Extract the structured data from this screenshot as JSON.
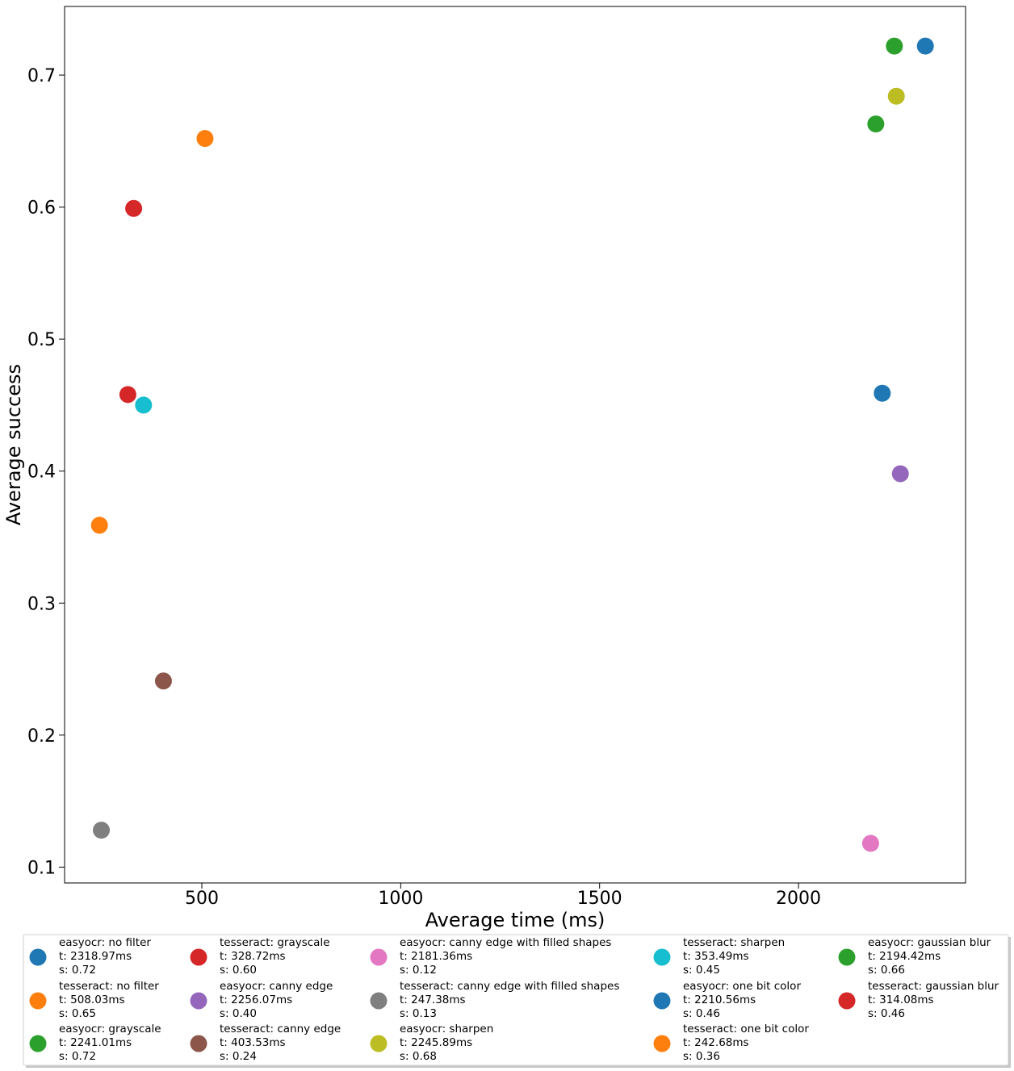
{
  "chart_data": {
    "type": "scatter",
    "title": "",
    "xlabel": "Average time (ms)",
    "ylabel": "Average success",
    "xlim": [
      155,
      2420
    ],
    "ylim": [
      0.088,
      0.752
    ],
    "x_ticks": [
      500,
      1000,
      1500,
      2000
    ],
    "x_tick_labels": [
      "500",
      "1000",
      "1500",
      "2000"
    ],
    "y_ticks": [
      0.1,
      0.2,
      0.3,
      0.4,
      0.5,
      0.6,
      0.7
    ],
    "y_tick_labels": [
      "0.1",
      "0.2",
      "0.3",
      "0.4",
      "0.5",
      "0.6",
      "0.7"
    ],
    "grid": false,
    "legend_position": "below plot",
    "series": [
      {
        "name": "easyocr: no filter",
        "color": "#1f77b4",
        "x": 2318.97,
        "y": 0.722,
        "legend": [
          "easyocr: no filter",
          "t: 2318.97ms",
          "s: 0.72"
        ]
      },
      {
        "name": "tesseract: no filter",
        "color": "#ff7f0e",
        "x": 508.03,
        "y": 0.652,
        "legend": [
          "tesseract: no filter",
          "t: 508.03ms",
          "s: 0.65"
        ]
      },
      {
        "name": "easyocr: grayscale",
        "color": "#2ca02c",
        "x": 2241.01,
        "y": 0.722,
        "legend": [
          "easyocr: grayscale",
          "t: 2241.01ms",
          "s: 0.72"
        ]
      },
      {
        "name": "tesseract: grayscale",
        "color": "#d62728",
        "x": 328.72,
        "y": 0.599,
        "legend": [
          "tesseract: grayscale",
          "t: 328.72ms",
          "s: 0.60"
        ]
      },
      {
        "name": "easyocr: canny edge",
        "color": "#9467bd",
        "x": 2256.07,
        "y": 0.398,
        "legend": [
          "easyocr: canny edge",
          "t: 2256.07ms",
          "s: 0.40"
        ]
      },
      {
        "name": "tesseract: canny edge",
        "color": "#8c564b",
        "x": 403.53,
        "y": 0.241,
        "legend": [
          "tesseract: canny edge",
          "t: 403.53ms",
          "s: 0.24"
        ]
      },
      {
        "name": "easyocr: canny edge with filled shapes",
        "color": "#e377c2",
        "x": 2181.36,
        "y": 0.118,
        "legend": [
          "easyocr: canny edge with filled shapes",
          "t: 2181.36ms",
          "s: 0.12"
        ]
      },
      {
        "name": "tesseract: canny edge with filled shapes",
        "color": "#7f7f7f",
        "x": 247.38,
        "y": 0.128,
        "legend": [
          "tesseract: canny edge with filled shapes",
          "t: 247.38ms",
          "s: 0.13"
        ]
      },
      {
        "name": "easyocr: sharpen",
        "color": "#bcbd22",
        "x": 2245.89,
        "y": 0.684,
        "legend": [
          "easyocr: sharpen",
          "t: 2245.89ms",
          "s: 0.68"
        ]
      },
      {
        "name": "tesseract: sharpen",
        "color": "#17becf",
        "x": 353.49,
        "y": 0.45,
        "legend": [
          "tesseract: sharpen",
          "t: 353.49ms",
          "s: 0.45"
        ]
      },
      {
        "name": "easyocr: one bit color",
        "color": "#1f77b4",
        "x": 2210.56,
        "y": 0.459,
        "legend": [
          "easyocr: one bit color",
          "t: 2210.56ms",
          "s: 0.46"
        ]
      },
      {
        "name": "tesseract: one bit color",
        "color": "#ff7f0e",
        "x": 242.68,
        "y": 0.359,
        "legend": [
          "tesseract: one bit color",
          "t: 242.68ms",
          "s: 0.36"
        ]
      },
      {
        "name": "easyocr: gaussian blur",
        "color": "#2ca02c",
        "x": 2194.42,
        "y": 0.663,
        "legend": [
          "easyocr: gaussian blur",
          "t: 2194.42ms",
          "s: 0.66"
        ]
      },
      {
        "name": "tesseract: gaussian blur",
        "color": "#d62728",
        "x": 314.08,
        "y": 0.458,
        "legend": [
          "tesseract: gaussian blur",
          "t: 314.08ms",
          "s: 0.46"
        ]
      }
    ]
  }
}
